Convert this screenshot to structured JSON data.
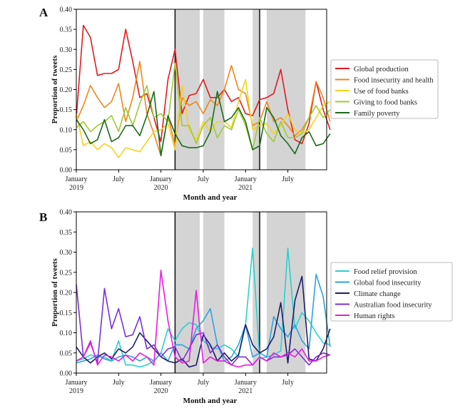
{
  "chart_data": [
    {
      "panel": "A",
      "type": "line",
      "xlabel": "Month and year",
      "ylabel": "Proportion of tweets",
      "ylim": [
        0,
        0.4
      ],
      "yticks": [
        "0.00",
        "0.05",
        "0.10",
        "0.15",
        "0.20",
        "0.25",
        "0.30",
        "0.35",
        "0.40"
      ],
      "x_tick_labels": [
        {
          "line1": "January",
          "line2": "2019",
          "month_index": 0
        },
        {
          "line1": "July",
          "line2": "",
          "month_index": 6
        },
        {
          "line1": "January",
          "line2": "2020",
          "month_index": 12
        },
        {
          "line1": "July",
          "line2": "",
          "month_index": 18
        },
        {
          "line1": "January",
          "line2": "2021",
          "month_index": 24
        },
        {
          "line1": "July",
          "line2": "",
          "month_index": 30
        }
      ],
      "x_range_months": [
        0,
        35.5
      ],
      "vertical_lines_months": [
        14,
        26
      ],
      "shaded_periods_months": [
        [
          14,
          17.5
        ],
        [
          18,
          21
        ],
        [
          25,
          26
        ],
        [
          27,
          32.5
        ]
      ],
      "series": [
        {
          "name": "Global production",
          "color": "#e31a1c",
          "values": [
            0.13,
            0.36,
            0.33,
            0.235,
            0.24,
            0.24,
            0.25,
            0.35,
            0.27,
            0.18,
            0.19,
            0.13,
            0.07,
            0.225,
            0.3,
            0.14,
            0.185,
            0.19,
            0.225,
            0.18,
            0.18,
            0.2,
            0.17,
            0.18,
            0.14,
            0.135,
            0.175,
            0.18,
            0.19,
            0.25,
            0.15,
            0.075,
            0.065,
            0.115,
            0.22,
            0.15,
            0.1
          ]
        },
        {
          "name": "Food insecurity and health",
          "color": "#f0861a",
          "values": [
            0.12,
            0.16,
            0.21,
            0.18,
            0.155,
            0.17,
            0.215,
            0.12,
            0.18,
            0.27,
            0.14,
            0.09,
            0.035,
            0.135,
            0.06,
            0.18,
            0.16,
            0.17,
            0.14,
            0.175,
            0.16,
            0.2,
            0.26,
            0.2,
            0.19,
            0.11,
            0.12,
            0.17,
            0.12,
            0.13,
            0.11,
            0.085,
            0.1,
            0.13,
            0.22,
            0.18,
            0.12
          ]
        },
        {
          "name": "Use of food banks",
          "color": "#f5d21f",
          "values": [
            0.14,
            0.06,
            0.07,
            0.05,
            0.065,
            0.055,
            0.03,
            0.055,
            0.05,
            0.045,
            0.07,
            0.095,
            0.1,
            0.115,
            0.05,
            0.21,
            0.1,
            0.075,
            0.12,
            0.095,
            0.12,
            0.12,
            0.105,
            0.17,
            0.225,
            0.1,
            0.11,
            0.115,
            0.09,
            0.11,
            0.14,
            0.1,
            0.09,
            0.1,
            0.13,
            0.16,
            0.17
          ]
        },
        {
          "name": "Giving to food banks",
          "color": "#9ccc33",
          "values": [
            0.105,
            0.12,
            0.095,
            0.11,
            0.12,
            0.135,
            0.095,
            0.155,
            0.11,
            0.165,
            0.21,
            0.13,
            0.14,
            0.12,
            0.265,
            0.11,
            0.11,
            0.065,
            0.11,
            0.13,
            0.08,
            0.11,
            0.1,
            0.15,
            0.11,
            0.05,
            0.13,
            0.09,
            0.07,
            0.12,
            0.08,
            0.08,
            0.09,
            0.13,
            0.16,
            0.13,
            0.15
          ]
        },
        {
          "name": "Family poverty",
          "color": "#1a6b1a",
          "values": [
            0.125,
            0.1,
            0.065,
            0.075,
            0.125,
            0.07,
            0.08,
            0.11,
            0.11,
            0.085,
            0.135,
            0.195,
            0.035,
            0.135,
            0.09,
            0.06,
            0.055,
            0.055,
            0.06,
            0.095,
            0.195,
            0.12,
            0.13,
            0.155,
            0.12,
            0.05,
            0.06,
            0.155,
            0.13,
            0.085,
            0.065,
            0.04,
            0.08,
            0.095,
            0.06,
            0.065,
            0.09
          ]
        }
      ]
    },
    {
      "panel": "B",
      "type": "line",
      "xlabel": "Month and year",
      "ylabel": "Proportion of tweets",
      "ylim": [
        0,
        0.4
      ],
      "yticks": [
        "0.00",
        "0.05",
        "0.10",
        "0.15",
        "0.20",
        "0.25",
        "0.30",
        "0.35",
        "0.40"
      ],
      "x_tick_labels": [
        {
          "line1": "January",
          "line2": "2019",
          "month_index": 0
        },
        {
          "line1": "July",
          "line2": "",
          "month_index": 6
        },
        {
          "line1": "January",
          "line2": "2020",
          "month_index": 12
        },
        {
          "line1": "July",
          "line2": "",
          "month_index": 18
        },
        {
          "line1": "January",
          "line2": "2021",
          "month_index": 24
        },
        {
          "line1": "July",
          "line2": "",
          "month_index": 30
        }
      ],
      "x_range_months": [
        0,
        35.5
      ],
      "vertical_lines_months": [
        14,
        26
      ],
      "shaded_periods_months": [
        [
          14,
          17.5
        ],
        [
          18,
          21
        ],
        [
          25,
          26
        ],
        [
          27,
          32.5
        ]
      ],
      "series": [
        {
          "name": "Food relief provision",
          "color": "#2ad1d1",
          "values": [
            0.03,
            0.035,
            0.045,
            0.04,
            0.04,
            0.03,
            0.08,
            0.02,
            0.02,
            0.015,
            0.02,
            0.03,
            0.05,
            0.11,
            0.08,
            0.11,
            0.125,
            0.12,
            0.08,
            0.065,
            0.06,
            0.07,
            0.06,
            0.04,
            0.12,
            0.31,
            0.035,
            0.04,
            0.045,
            0.055,
            0.31,
            0.11,
            0.15,
            0.13,
            0.1,
            0.075,
            0.07
          ]
        },
        {
          "name": "Global food insecurity",
          "color": "#29a3e0",
          "values": [
            0.025,
            0.03,
            0.035,
            0.045,
            0.035,
            0.03,
            0.04,
            0.045,
            0.04,
            0.03,
            0.04,
            0.03,
            0.05,
            0.03,
            0.07,
            0.07,
            0.06,
            0.11,
            0.13,
            0.16,
            0.07,
            0.03,
            0.04,
            0.07,
            0.12,
            0.04,
            0.05,
            0.04,
            0.14,
            0.11,
            0.09,
            0.12,
            0.08,
            0.06,
            0.245,
            0.19,
            0.065
          ]
        },
        {
          "name": "Climate change",
          "color": "#1c1c6b",
          "values": [
            0.065,
            0.04,
            0.025,
            0.04,
            0.05,
            0.035,
            0.06,
            0.05,
            0.065,
            0.1,
            0.08,
            0.06,
            0.04,
            0.03,
            0.025,
            0.035,
            0.015,
            0.02,
            0.095,
            0.07,
            0.03,
            0.05,
            0.03,
            0.045,
            0.12,
            0.07,
            0.05,
            0.06,
            0.09,
            0.175,
            0.025,
            0.18,
            0.24,
            0.035,
            0.03,
            0.06,
            0.11
          ]
        },
        {
          "name": "Australian food insecurity",
          "color": "#7b2fd6",
          "values": [
            0.22,
            0.04,
            0.075,
            0.025,
            0.21,
            0.11,
            0.16,
            0.09,
            0.095,
            0.14,
            0.06,
            0.07,
            0.04,
            0.06,
            0.065,
            0.03,
            0.06,
            0.095,
            0.1,
            0.05,
            0.07,
            0.04,
            0.02,
            0.04,
            0.04,
            0.02,
            0.04,
            0.03,
            0.04,
            0.04,
            0.045,
            0.06,
            0.04,
            0.02,
            0.04,
            0.05,
            0.045
          ]
        },
        {
          "name": "Human rights",
          "color": "#e81be0",
          "values": [
            0.03,
            0.04,
            0.08,
            0.02,
            0.045,
            0.04,
            0.03,
            0.045,
            0.03,
            0.05,
            0.04,
            0.02,
            0.255,
            0.13,
            0.04,
            0.025,
            0.03,
            0.205,
            0.025,
            0.04,
            0.03,
            0.03,
            0.02,
            0.015,
            0.02,
            0.02,
            0.04,
            0.03,
            0.05,
            0.04,
            0.05,
            0.04,
            0.06,
            0.03,
            0.03,
            0.04,
            0.045
          ]
        }
      ]
    }
  ]
}
